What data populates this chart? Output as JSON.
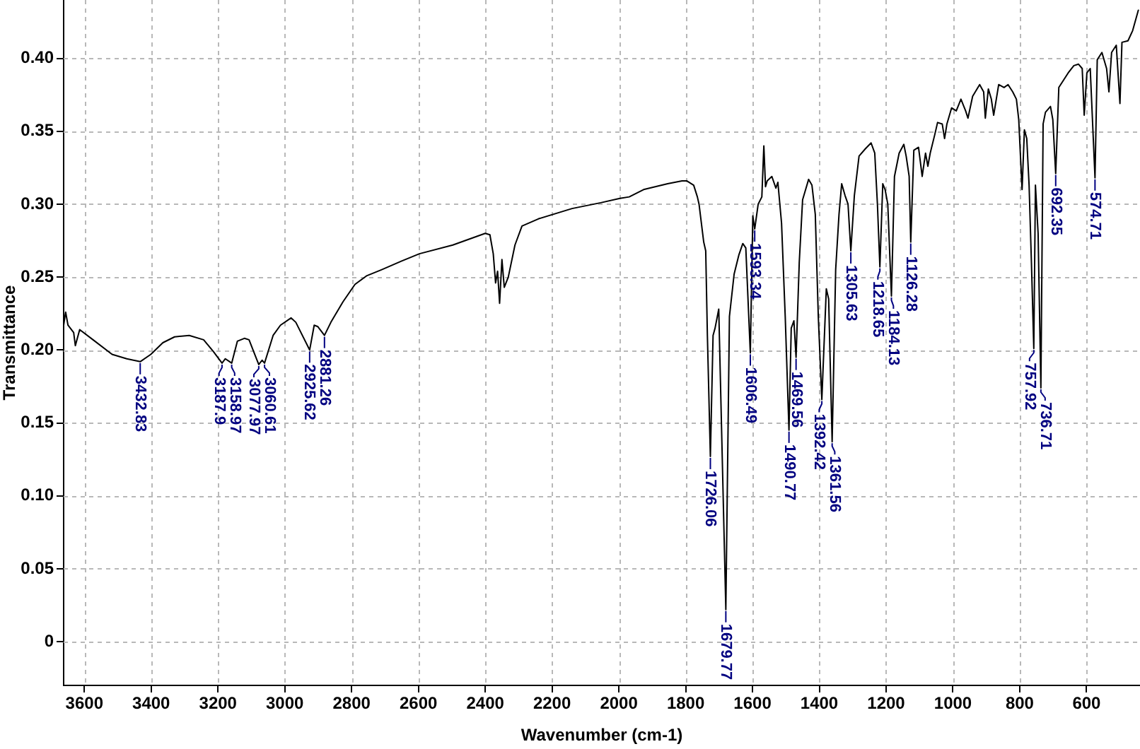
{
  "chart_data": {
    "type": "line",
    "xlabel": "Wavenumber (cm-1)",
    "ylabel": "Transmittance",
    "xlim": [
      3662,
      440
    ],
    "xticks": [
      3600,
      3400,
      3200,
      3000,
      2800,
      2600,
      2400,
      2200,
      2000,
      1800,
      1600,
      1400,
      1200,
      1000,
      800,
      600
    ],
    "ylim": [
      -0.03,
      0.44
    ],
    "yticks": [
      0,
      0.05,
      {
        "value": 0.1,
        "label": "0.10"
      },
      0.15,
      {
        "value": 0.2,
        "label": "0.20"
      },
      0.25,
      {
        "value": 0.3,
        "label": "0.30"
      },
      0.35,
      {
        "value": 0.4,
        "label": "0.40"
      }
    ],
    "grid": true,
    "series": [
      {
        "color": "#000000",
        "x": [
          3662,
          3656,
          3649,
          3632,
          3627,
          3614,
          3574,
          3517,
          3473,
          3432.83,
          3401,
          3365,
          3330,
          3286,
          3243,
          3214,
          3187.9,
          3178,
          3158.97,
          3142,
          3121,
          3107,
          3077.97,
          3068,
          3060.61,
          3035,
          3013,
          2981,
          2967,
          2925.62,
          2912,
          2901,
          2881.26,
          2862,
          2826,
          2790,
          2754,
          2711,
          2650,
          2597,
          2497,
          2400,
          2386,
          2376,
          2369,
          2363,
          2357,
          2350,
          2343,
          2331,
          2311,
          2290,
          2240,
          2140,
          2054,
          1997,
          1969,
          1926,
          1854,
          1811,
          1797,
          1776,
          1765,
          1760,
          1746,
          1740,
          1735,
          1726.06,
          1718,
          1712,
          1701,
          1679.77,
          1669,
          1655,
          1641,
          1629,
          1620,
          1606.49,
          1599,
          1593.34,
          1583,
          1572,
          1566,
          1561,
          1556,
          1542,
          1530,
          1524,
          1513,
          1502,
          1490.77,
          1484,
          1476,
          1469.56,
          1460,
          1450,
          1432,
          1422,
          1412,
          1403,
          1392.42,
          1379,
          1372,
          1361.56,
          1351,
          1341,
          1333,
          1323,
          1314,
          1305.63,
          1295,
          1281,
          1262,
          1245,
          1234,
          1226,
          1218.65,
          1210,
          1203,
          1195,
          1184.13,
          1175,
          1161,
          1147,
          1140,
          1131,
          1126.28,
          1117,
          1103,
          1092,
          1082,
          1075,
          1068,
          1054,
          1046,
          1032,
          1025,
          1018,
          1004,
          990,
          976,
          962,
          955,
          941,
          920,
          908,
          903,
          894,
          885,
          878,
          863,
          847,
          835,
          821,
          810,
          803,
          797,
          793,
          786,
          779,
          772,
          765,
          757.92,
          753,
          745,
          736.71,
          730,
          723,
          708,
          701,
          692.35,
          683,
          669,
          655,
          638,
          624,
          613,
          607,
          599,
          589,
          574.71,
          568,
          554,
          540,
          533,
          525,
          511,
          500,
          494,
          476,
          462,
          445
        ],
        "values": [
          0.217,
          0.226,
          0.217,
          0.212,
          0.203,
          0.214,
          0.207,
          0.197,
          0.194,
          0.192,
          0.197,
          0.205,
          0.209,
          0.21,
          0.207,
          0.199,
          0.191,
          0.194,
          0.191,
          0.206,
          0.208,
          0.207,
          0.19,
          0.193,
          0.191,
          0.21,
          0.217,
          0.222,
          0.219,
          0.2,
          0.217,
          0.216,
          0.21,
          0.219,
          0.233,
          0.245,
          0.251,
          0.255,
          0.261,
          0.266,
          0.272,
          0.28,
          0.279,
          0.266,
          0.246,
          0.254,
          0.232,
          0.262,
          0.243,
          0.25,
          0.272,
          0.285,
          0.29,
          0.297,
          0.301,
          0.304,
          0.305,
          0.31,
          0.314,
          0.316,
          0.316,
          0.313,
          0.305,
          0.3,
          0.274,
          0.268,
          0.21,
          0.127,
          0.21,
          0.215,
          0.228,
          0.022,
          0.223,
          0.252,
          0.265,
          0.273,
          0.27,
          0.198,
          0.292,
          0.283,
          0.3,
          0.305,
          0.34,
          0.312,
          0.316,
          0.319,
          0.311,
          0.315,
          0.287,
          0.223,
          0.145,
          0.215,
          0.22,
          0.195,
          0.26,
          0.303,
          0.317,
          0.313,
          0.293,
          0.223,
          0.166,
          0.242,
          0.235,
          0.137,
          0.255,
          0.293,
          0.314,
          0.306,
          0.3,
          0.268,
          0.306,
          0.333,
          0.338,
          0.342,
          0.335,
          0.3,
          0.257,
          0.314,
          0.31,
          0.3,
          0.237,
          0.319,
          0.335,
          0.341,
          0.333,
          0.319,
          0.274,
          0.337,
          0.339,
          0.319,
          0.335,
          0.326,
          0.335,
          0.348,
          0.356,
          0.355,
          0.345,
          0.355,
          0.366,
          0.364,
          0.372,
          0.364,
          0.359,
          0.374,
          0.382,
          0.377,
          0.359,
          0.379,
          0.372,
          0.361,
          0.382,
          0.38,
          0.382,
          0.377,
          0.372,
          0.358,
          0.329,
          0.31,
          0.351,
          0.345,
          0.313,
          0.26,
          0.201,
          0.313,
          0.28,
          0.174,
          0.355,
          0.363,
          0.367,
          0.358,
          0.321,
          0.38,
          0.385,
          0.39,
          0.395,
          0.396,
          0.393,
          0.361,
          0.39,
          0.393,
          0.318,
          0.399,
          0.404,
          0.393,
          0.377,
          0.404,
          0.409,
          0.369,
          0.411,
          0.412,
          0.419,
          0.433
        ]
      }
    ],
    "annotations": [
      {
        "text": "3432.83",
        "x": 3432.83,
        "y": 0.192
      },
      {
        "text": "3187.9",
        "x": 3187.9,
        "y": 0.191
      },
      {
        "text": "3158.97",
        "x": 3158.97,
        "y": 0.191
      },
      {
        "text": "3077.97",
        "x": 3077.97,
        "y": 0.19
      },
      {
        "text": "3060.61",
        "x": 3060.61,
        "y": 0.191
      },
      {
        "text": "2925.62",
        "x": 2925.62,
        "y": 0.2
      },
      {
        "text": "2881.26",
        "x": 2881.26,
        "y": 0.21
      },
      {
        "text": "1726.06",
        "x": 1726.06,
        "y": 0.127
      },
      {
        "text": "1679.77",
        "x": 1679.77,
        "y": 0.022
      },
      {
        "text": "1606.49",
        "x": 1606.49,
        "y": 0.198
      },
      {
        "text": "1593.34",
        "x": 1593.34,
        "y": 0.283
      },
      {
        "text": "1490.77",
        "x": 1490.77,
        "y": 0.145
      },
      {
        "text": "1469.56",
        "x": 1469.56,
        "y": 0.195
      },
      {
        "text": "1392.42",
        "x": 1392.42,
        "y": 0.166
      },
      {
        "text": "1361.56",
        "x": 1361.56,
        "y": 0.137
      },
      {
        "text": "1305.63",
        "x": 1305.63,
        "y": 0.268
      },
      {
        "text": "1218.65",
        "x": 1218.65,
        "y": 0.257
      },
      {
        "text": "1184.13",
        "x": 1184.13,
        "y": 0.237
      },
      {
        "text": "1126.28",
        "x": 1126.28,
        "y": 0.274
      },
      {
        "text": "757.92",
        "x": 757.92,
        "y": 0.201
      },
      {
        "text": "736.71",
        "x": 736.71,
        "y": 0.174
      },
      {
        "text": "692.35",
        "x": 692.35,
        "y": 0.321
      },
      {
        "text": "574.71",
        "x": 574.71,
        "y": 0.318
      }
    ]
  }
}
